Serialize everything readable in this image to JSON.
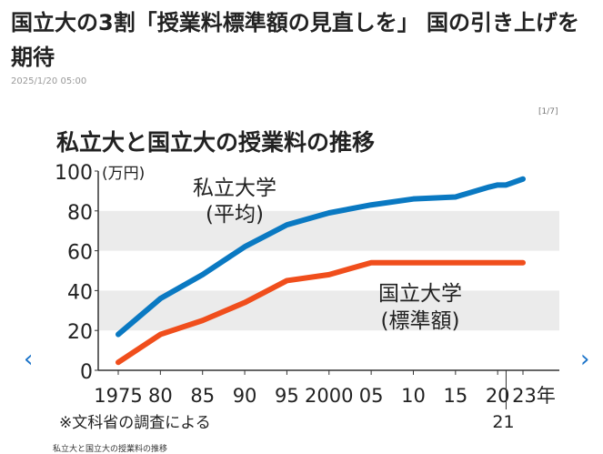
{
  "article": {
    "title": "国立大の3割「授業料標準額の見直しを」 国の引き上げを期待",
    "date": "2025/1/20 05:00",
    "counter": "[1/7]",
    "caption": "私立大と国立大の授業料の推移"
  },
  "nav": {
    "prev": "‹",
    "next": "›"
  },
  "chart_data": {
    "type": "line",
    "title": "私立大と国立大の授業料の推移",
    "ylabel": "(万円)",
    "ylim": [
      0,
      100
    ],
    "yticks": [
      "0",
      "20",
      "40",
      "60",
      "80",
      "100"
    ],
    "xlim": [
      1975,
      2023
    ],
    "xticks": [
      {
        "v": 1975,
        "label": "1975"
      },
      {
        "v": 1980,
        "label": "80"
      },
      {
        "v": 1985,
        "label": "85"
      },
      {
        "v": 1990,
        "label": "90"
      },
      {
        "v": 1995,
        "label": "95"
      },
      {
        "v": 2000,
        "label": "2000"
      },
      {
        "v": 2005,
        "label": "05"
      },
      {
        "v": 2010,
        "label": "10"
      },
      {
        "v": 2015,
        "label": "15"
      },
      {
        "v": 2020,
        "label": "20"
      },
      {
        "v": 2023,
        "label": "23年"
      }
    ],
    "extra_tick": {
      "v": 2021,
      "label": "21"
    },
    "note": "※文科省の調査による",
    "series": [
      {
        "name": "私立大学",
        "sub": "(平均)",
        "color": "#0a79c2",
        "x": [
          1975,
          1980,
          1985,
          1990,
          1995,
          2000,
          2005,
          2010,
          2015,
          2019,
          2020,
          2021,
          2023
        ],
        "values": [
          18,
          36,
          48,
          62,
          73,
          79,
          83,
          86,
          87,
          92,
          93,
          93,
          96
        ]
      },
      {
        "name": "国立大学",
        "sub": "(標準額)",
        "color": "#f04e1c",
        "x": [
          1975,
          1980,
          1985,
          1990,
          1995,
          2000,
          2005,
          2010,
          2015,
          2020,
          2023
        ],
        "values": [
          4,
          18,
          25,
          34,
          45,
          48,
          54,
          54,
          54,
          54,
          54
        ]
      }
    ]
  }
}
